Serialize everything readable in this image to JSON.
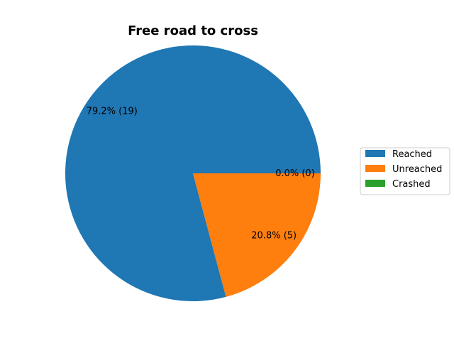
{
  "chart_data": {
    "type": "pie",
    "title": "Free road to cross",
    "slices": [
      {
        "name": "Reached",
        "value": 19,
        "percent_label": "79.2%  (19)",
        "color": "#1f77b4"
      },
      {
        "name": "Unreached",
        "value": 5,
        "percent_label": "20.8%  (5)",
        "color": "#ff7f0e"
      },
      {
        "name": "Crashed",
        "value": 0,
        "percent_label": "0.0%  (0)",
        "color": "#2ca02c"
      }
    ],
    "legend_position": "right"
  }
}
